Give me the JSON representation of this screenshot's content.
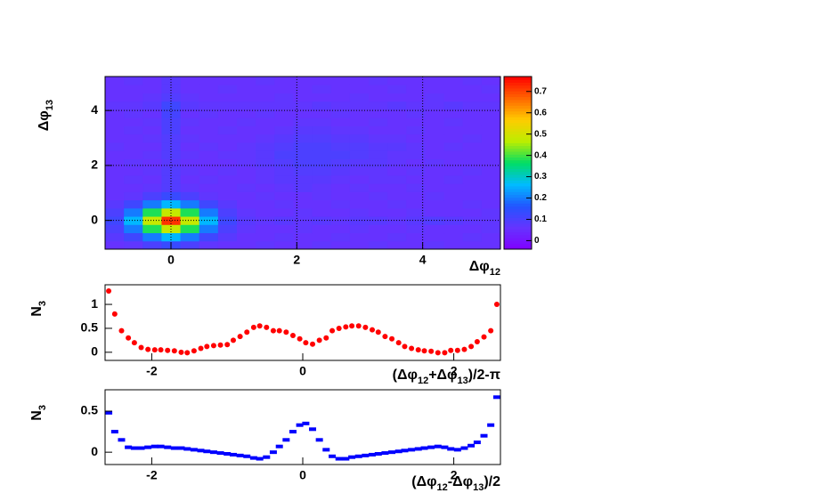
{
  "chart_data": [
    {
      "type": "heatmap",
      "x_label": [
        "Δφ",
        "12"
      ],
      "y_label": [
        "Δφ",
        "13"
      ],
      "xlim": [
        -1.047,
        5.236
      ],
      "ylim": [
        -1.047,
        5.236
      ],
      "xticks": [
        0,
        2,
        4
      ],
      "yticks": [
        0,
        2,
        4
      ],
      "grid": true,
      "zlim": [
        -0.04,
        0.77
      ],
      "zticks": [
        0,
        0.1,
        0.2,
        0.3,
        0.4,
        0.5,
        0.6,
        0.7
      ],
      "palette": [
        "#8000ff",
        "#6633ff",
        "#2255ff",
        "#00bbff",
        "#00dd66",
        "#bbee00",
        "#ffcc00",
        "#ff6600",
        "#ff0000"
      ],
      "values": [
        [
          0.06,
          0.07,
          0.1,
          0.13,
          0.1,
          0.07,
          0.06,
          0.06,
          0.07,
          0.06,
          0.06,
          0.07,
          0.06,
          0.06,
          0.07,
          0.06,
          0.06,
          0.07,
          0.06,
          0.06,
          0.06
        ],
        [
          0.08,
          0.12,
          0.2,
          0.26,
          0.2,
          0.12,
          0.08,
          0.06,
          0.06,
          0.07,
          0.06,
          0.06,
          0.07,
          0.06,
          0.06,
          0.07,
          0.06,
          0.06,
          0.06,
          0.07,
          0.06
        ],
        [
          0.1,
          0.2,
          0.38,
          0.48,
          0.38,
          0.2,
          0.1,
          0.07,
          0.06,
          0.06,
          0.07,
          0.06,
          0.06,
          0.07,
          0.06,
          0.06,
          0.07,
          0.06,
          0.06,
          0.06,
          0.07
        ],
        [
          0.12,
          0.26,
          0.48,
          0.72,
          0.48,
          0.26,
          0.12,
          0.08,
          0.07,
          0.08,
          0.07,
          0.08,
          0.07,
          0.08,
          0.08,
          0.07,
          0.08,
          0.09,
          0.08,
          0.07,
          0.07
        ],
        [
          0.1,
          0.2,
          0.38,
          0.48,
          0.38,
          0.2,
          0.1,
          0.07,
          0.06,
          0.06,
          0.07,
          0.06,
          0.06,
          0.07,
          0.06,
          0.06,
          0.07,
          0.06,
          0.06,
          0.06,
          0.07
        ],
        [
          0.08,
          0.12,
          0.2,
          0.26,
          0.2,
          0.12,
          0.08,
          0.06,
          0.06,
          0.07,
          0.06,
          0.06,
          0.07,
          0.06,
          0.06,
          0.07,
          0.06,
          0.06,
          0.06,
          0.07,
          0.06
        ],
        [
          0.06,
          0.07,
          0.1,
          0.13,
          0.1,
          0.07,
          0.06,
          0.06,
          0.07,
          0.06,
          0.06,
          0.07,
          0.06,
          0.06,
          0.07,
          0.06,
          0.06,
          0.07,
          0.06,
          0.06,
          0.06
        ],
        [
          0.06,
          0.06,
          0.07,
          0.09,
          0.07,
          0.06,
          0.06,
          0.07,
          0.06,
          0.07,
          0.08,
          0.07,
          0.06,
          0.07,
          0.06,
          0.06,
          0.07,
          0.06,
          0.06,
          0.06,
          0.06
        ],
        [
          0.06,
          0.07,
          0.06,
          0.09,
          0.06,
          0.07,
          0.06,
          0.06,
          0.07,
          0.08,
          0.08,
          0.08,
          0.07,
          0.06,
          0.07,
          0.07,
          0.06,
          0.06,
          0.07,
          0.06,
          0.06
        ],
        [
          0.06,
          0.06,
          0.07,
          0.09,
          0.07,
          0.06,
          0.07,
          0.06,
          0.07,
          0.08,
          0.09,
          0.09,
          0.08,
          0.07,
          0.07,
          0.06,
          0.07,
          0.06,
          0.06,
          0.07,
          0.06
        ],
        [
          0.06,
          0.07,
          0.06,
          0.08,
          0.06,
          0.06,
          0.06,
          0.07,
          0.08,
          0.09,
          0.1,
          0.1,
          0.09,
          0.08,
          0.08,
          0.07,
          0.06,
          0.07,
          0.06,
          0.06,
          0.06
        ],
        [
          0.06,
          0.06,
          0.07,
          0.09,
          0.07,
          0.06,
          0.07,
          0.07,
          0.08,
          0.1,
          0.1,
          0.1,
          0.1,
          0.09,
          0.08,
          0.07,
          0.07,
          0.06,
          0.06,
          0.06,
          0.06
        ],
        [
          0.07,
          0.06,
          0.06,
          0.09,
          0.06,
          0.07,
          0.06,
          0.07,
          0.08,
          0.09,
          0.1,
          0.1,
          0.09,
          0.09,
          0.08,
          0.08,
          0.07,
          0.06,
          0.07,
          0.06,
          0.06
        ],
        [
          0.06,
          0.06,
          0.07,
          0.09,
          0.07,
          0.06,
          0.06,
          0.06,
          0.07,
          0.08,
          0.09,
          0.09,
          0.08,
          0.08,
          0.07,
          0.07,
          0.06,
          0.06,
          0.06,
          0.07,
          0.06
        ],
        [
          0.06,
          0.07,
          0.06,
          0.1,
          0.06,
          0.06,
          0.07,
          0.06,
          0.06,
          0.07,
          0.08,
          0.08,
          0.07,
          0.07,
          0.06,
          0.06,
          0.07,
          0.06,
          0.06,
          0.06,
          0.06
        ],
        [
          0.06,
          0.06,
          0.07,
          0.1,
          0.07,
          0.06,
          0.06,
          0.07,
          0.06,
          0.06,
          0.07,
          0.07,
          0.06,
          0.06,
          0.07,
          0.06,
          0.06,
          0.06,
          0.07,
          0.06,
          0.06
        ],
        [
          0.06,
          0.07,
          0.06,
          0.11,
          0.06,
          0.07,
          0.06,
          0.06,
          0.07,
          0.06,
          0.06,
          0.06,
          0.07,
          0.06,
          0.06,
          0.06,
          0.07,
          0.06,
          0.06,
          0.06,
          0.06
        ],
        [
          0.07,
          0.07,
          0.08,
          0.12,
          0.08,
          0.07,
          0.07,
          0.07,
          0.07,
          0.07,
          0.07,
          0.08,
          0.07,
          0.07,
          0.07,
          0.08,
          0.07,
          0.07,
          0.08,
          0.07,
          0.07
        ],
        [
          0.06,
          0.06,
          0.07,
          0.09,
          0.07,
          0.06,
          0.06,
          0.06,
          0.06,
          0.07,
          0.06,
          0.06,
          0.06,
          0.07,
          0.06,
          0.06,
          0.06,
          0.07,
          0.06,
          0.06,
          0.06
        ],
        [
          0.06,
          0.06,
          0.06,
          0.08,
          0.06,
          0.06,
          0.07,
          0.06,
          0.06,
          0.06,
          0.06,
          0.07,
          0.06,
          0.06,
          0.06,
          0.07,
          0.06,
          0.06,
          0.06,
          0.06,
          0.07
        ],
        [
          0.06,
          0.07,
          0.06,
          0.08,
          0.06,
          0.06,
          0.06,
          0.06,
          0.07,
          0.06,
          0.06,
          0.06,
          0.06,
          0.06,
          0.07,
          0.06,
          0.06,
          0.06,
          0.06,
          0.07,
          0.06
        ]
      ]
    },
    {
      "type": "scatter",
      "marker": "circle",
      "color": "#ff0000",
      "x_label": [
        "(Δφ",
        "12",
        "+Δφ",
        "13",
        ")/2-π"
      ],
      "y_label": [
        "N",
        "3"
      ],
      "xlim": [
        -2.618,
        2.618
      ],
      "ylim": [
        -0.17,
        1.41
      ],
      "xticks": [
        -2,
        0,
        2
      ],
      "yticks": [
        0,
        0.5,
        1
      ],
      "grid": false,
      "x": [
        -2.57,
        -2.49,
        -2.4,
        -2.31,
        -2.23,
        -2.14,
        -2.05,
        -1.96,
        -1.88,
        -1.79,
        -1.7,
        -1.61,
        -1.53,
        -1.44,
        -1.35,
        -1.27,
        -1.18,
        -1.09,
        -1.0,
        -0.92,
        -0.83,
        -0.74,
        -0.65,
        -0.57,
        -0.48,
        -0.39,
        -0.31,
        -0.22,
        -0.13,
        -0.04,
        0.04,
        0.13,
        0.22,
        0.31,
        0.39,
        0.48,
        0.57,
        0.65,
        0.74,
        0.83,
        0.92,
        1.0,
        1.09,
        1.18,
        1.27,
        1.35,
        1.44,
        1.53,
        1.61,
        1.7,
        1.79,
        1.88,
        1.96,
        2.05,
        2.14,
        2.23,
        2.31,
        2.4,
        2.49,
        2.57
      ],
      "values": [
        1.28,
        0.8,
        0.45,
        0.3,
        0.2,
        0.1,
        0.06,
        0.05,
        0.05,
        0.04,
        0.03,
        0.0,
        -0.01,
        0.03,
        0.08,
        0.12,
        0.14,
        0.15,
        0.16,
        0.25,
        0.33,
        0.42,
        0.52,
        0.55,
        0.52,
        0.45,
        0.45,
        0.42,
        0.35,
        0.28,
        0.2,
        0.17,
        0.25,
        0.3,
        0.45,
        0.5,
        0.53,
        0.55,
        0.55,
        0.52,
        0.47,
        0.42,
        0.33,
        0.28,
        0.2,
        0.12,
        0.08,
        0.05,
        0.03,
        0.02,
        -0.01,
        -0.01,
        0.04,
        0.04,
        0.06,
        0.12,
        0.22,
        0.32,
        0.45,
        1.0
      ]
    },
    {
      "type": "scatter",
      "marker": "square",
      "color": "#0000ff",
      "x_label": [
        "(Δφ",
        "12",
        "-Δφ",
        "13",
        ")/2"
      ],
      "y_label": [
        "N",
        "3"
      ],
      "xlim": [
        -2.618,
        2.618
      ],
      "ylim": [
        -0.15,
        0.76
      ],
      "xticks": [
        -2,
        0,
        2
      ],
      "yticks": [
        0,
        0.5
      ],
      "grid": false,
      "x": [
        -2.57,
        -2.49,
        -2.4,
        -2.31,
        -2.23,
        -2.14,
        -2.05,
        -1.96,
        -1.88,
        -1.79,
        -1.7,
        -1.61,
        -1.53,
        -1.44,
        -1.35,
        -1.27,
        -1.18,
        -1.09,
        -1.0,
        -0.92,
        -0.83,
        -0.74,
        -0.65,
        -0.57,
        -0.48,
        -0.39,
        -0.31,
        -0.22,
        -0.13,
        -0.04,
        0.04,
        0.13,
        0.22,
        0.31,
        0.39,
        0.48,
        0.57,
        0.65,
        0.74,
        0.83,
        0.92,
        1.0,
        1.09,
        1.18,
        1.27,
        1.35,
        1.44,
        1.53,
        1.61,
        1.7,
        1.79,
        1.88,
        1.96,
        2.05,
        2.14,
        2.23,
        2.31,
        2.4,
        2.49,
        2.57
      ],
      "values": [
        0.48,
        0.25,
        0.15,
        0.06,
        0.05,
        0.05,
        0.06,
        0.07,
        0.07,
        0.06,
        0.05,
        0.05,
        0.04,
        0.03,
        0.02,
        0.01,
        0.0,
        -0.01,
        -0.02,
        -0.03,
        -0.04,
        -0.05,
        -0.07,
        -0.08,
        -0.06,
        0.0,
        0.07,
        0.15,
        0.25,
        0.33,
        0.35,
        0.28,
        0.15,
        0.03,
        -0.05,
        -0.08,
        -0.08,
        -0.06,
        -0.05,
        -0.04,
        -0.03,
        -0.02,
        -0.01,
        0.0,
        0.01,
        0.02,
        0.03,
        0.04,
        0.05,
        0.06,
        0.07,
        0.06,
        0.04,
        0.03,
        0.05,
        0.08,
        0.12,
        0.2,
        0.33,
        0.67
      ]
    }
  ]
}
